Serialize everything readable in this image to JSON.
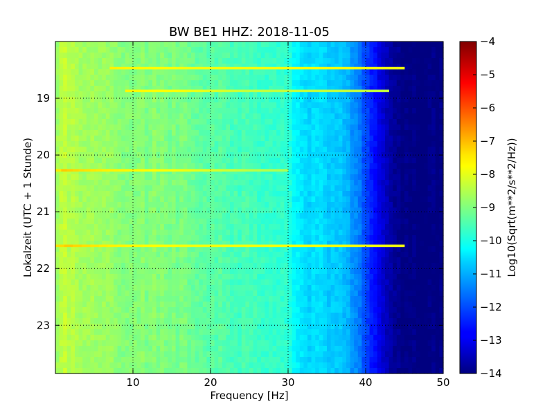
{
  "chart_data": {
    "type": "heatmap",
    "title": "BW BE1 HHZ: 2018-11-05",
    "xlabel": "Frequency [Hz]",
    "ylabel": "Lokalzeit (UTC + 1 Stunde)",
    "xlim": [
      0,
      50
    ],
    "ylim": [
      18.0,
      23.85
    ],
    "y_inverted": true,
    "x_ticks": [
      10,
      20,
      30,
      40,
      50
    ],
    "y_ticks": [
      19,
      20,
      21,
      22,
      23
    ],
    "grid": true,
    "colormap": "jet",
    "colorbar": {
      "label": "Log10(Sqrt(m**2/s**2/Hz))",
      "min": -14,
      "max": -4,
      "ticks": [
        -4,
        -5,
        -6,
        -7,
        -8,
        -9,
        -10,
        -11,
        -12,
        -13,
        -14
      ]
    },
    "spectral_profile": {
      "frequency_hz": [
        0,
        1,
        3,
        6,
        10,
        15,
        20,
        25,
        28,
        30,
        31,
        33,
        35,
        37,
        38,
        39,
        40,
        41,
        42,
        43,
        44,
        45,
        50
      ],
      "log10_amplitude": [
        -8.9,
        -8.4,
        -8.6,
        -8.8,
        -8.9,
        -9.0,
        -9.3,
        -9.6,
        -9.7,
        -9.8,
        -10.3,
        -10.6,
        -10.7,
        -10.9,
        -11.1,
        -11.5,
        -12.0,
        -12.6,
        -13.1,
        -13.5,
        -13.9,
        -14.0,
        -14.0
      ]
    },
    "events": [
      {
        "time": 18.47,
        "f_min": 7,
        "f_max": 45,
        "log10_amplitude": -7.9
      },
      {
        "time": 18.87,
        "f_min": 9,
        "f_max": 43,
        "log10_amplitude": -8.4
      },
      {
        "time": 20.27,
        "f_min": 0,
        "f_max": 30,
        "log10_amplitude": -8.7
      },
      {
        "time": 21.6,
        "f_min": 0,
        "f_max": 45,
        "log10_amplitude": -7.9
      }
    ]
  }
}
